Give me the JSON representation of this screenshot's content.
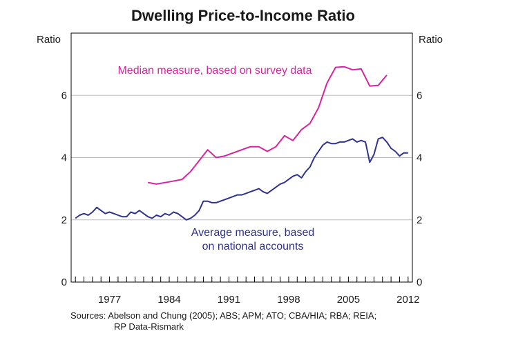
{
  "chart_data": {
    "type": "line",
    "title": "Dwelling Price-to-Income Ratio",
    "ylabel_left": "Ratio",
    "ylabel_right": "Ratio",
    "ylim": [
      0,
      8
    ],
    "yticks": [
      0,
      2,
      4,
      6
    ],
    "xlim": [
      1972.5,
      2012.5
    ],
    "xtick_labels": [
      "1977",
      "1984",
      "1991",
      "1998",
      "2005",
      "2012"
    ],
    "grid": "horizontal",
    "sources": [
      "Sources: Abelson and Chung (2005); ABS; APM; ATO; CBA/HIA; RBA; REIA;",
      "RP Data-Rismark"
    ],
    "colors": {
      "median": "#d6249f",
      "average": "#2e3192",
      "grid": "#bdbdbd",
      "axis": "#000000"
    },
    "series": [
      {
        "name": "Median measure, based on survey data",
        "label_lines": [
          "Median measure, based on survey data"
        ],
        "color": "#d6249f",
        "x": [
          1981.5,
          1982.5,
          1984,
          1985.5,
          1986.5,
          1987.5,
          1988.5,
          1989.5,
          1990.5,
          1991.5,
          1992.5,
          1993.5,
          1994.5,
          1995.5,
          1996.5,
          1997.5,
          1998.5,
          1999.5,
          2000.5,
          2001.5,
          2002.5,
          2003.5,
          2004.5,
          2005.5,
          2006.5,
          2007.5,
          2008.5,
          2009.5
        ],
        "values": [
          3.2,
          3.15,
          3.22,
          3.3,
          3.55,
          3.9,
          4.25,
          4.0,
          4.05,
          4.15,
          4.25,
          4.35,
          4.35,
          4.2,
          4.35,
          4.7,
          4.55,
          4.9,
          5.1,
          5.6,
          6.4,
          6.9,
          6.92,
          6.82,
          6.85,
          6.3,
          6.32,
          6.65
        ]
      },
      {
        "name": "Average measure, based on national accounts",
        "label_lines": [
          "Average measure, based",
          "on national accounts"
        ],
        "color": "#2e3192",
        "x": [
          1973,
          1973.5,
          1974,
          1974.5,
          1975,
          1975.5,
          1976,
          1976.5,
          1977,
          1977.5,
          1978,
          1978.5,
          1979,
          1979.5,
          1980,
          1980.5,
          1981,
          1981.5,
          1982,
          1982.5,
          1983,
          1983.5,
          1984,
          1984.5,
          1985,
          1985.5,
          1986,
          1986.5,
          1987,
          1987.5,
          1988,
          1988.5,
          1989,
          1989.5,
          1990,
          1990.5,
          1991,
          1991.5,
          1992,
          1992.5,
          1993,
          1993.5,
          1994,
          1994.5,
          1995,
          1995.5,
          1996,
          1996.5,
          1997,
          1997.5,
          1998,
          1998.5,
          1999,
          1999.5,
          2000,
          2000.5,
          2001,
          2001.5,
          2002,
          2002.5,
          2003,
          2003.5,
          2004,
          2004.5,
          2005,
          2005.5,
          2006,
          2006.5,
          2007,
          2007.5,
          2008,
          2008.5,
          2009,
          2009.5,
          2010,
          2010.5,
          2011,
          2011.5,
          2012
        ],
        "values": [
          2.05,
          2.15,
          2.2,
          2.15,
          2.25,
          2.4,
          2.3,
          2.2,
          2.25,
          2.2,
          2.15,
          2.1,
          2.1,
          2.25,
          2.2,
          2.3,
          2.2,
          2.1,
          2.05,
          2.15,
          2.1,
          2.2,
          2.15,
          2.25,
          2.2,
          2.1,
          2.0,
          2.05,
          2.15,
          2.3,
          2.6,
          2.6,
          2.55,
          2.55,
          2.6,
          2.65,
          2.7,
          2.75,
          2.8,
          2.8,
          2.85,
          2.9,
          2.95,
          3.0,
          2.9,
          2.85,
          2.95,
          3.05,
          3.15,
          3.2,
          3.3,
          3.4,
          3.45,
          3.35,
          3.55,
          3.7,
          4.0,
          4.2,
          4.4,
          4.5,
          4.45,
          4.45,
          4.5,
          4.5,
          4.55,
          4.6,
          4.5,
          4.55,
          4.5,
          3.85,
          4.1,
          4.6,
          4.65,
          4.5,
          4.3,
          4.2,
          4.05,
          4.15,
          4.15
        ]
      }
    ]
  }
}
